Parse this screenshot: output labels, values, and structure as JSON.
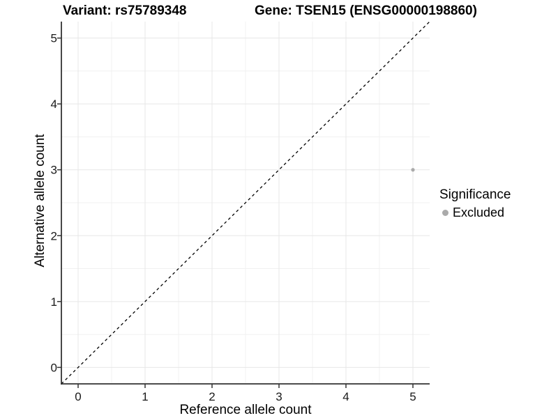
{
  "chart_data": {
    "type": "scatter",
    "title_left": "Variant: rs75789348",
    "title_right": "Gene: TSEN15 (ENSG00000198860)",
    "xlabel": "Reference allele count",
    "ylabel": "Alternative allele count",
    "xlim": [
      -0.25,
      5.25
    ],
    "ylim": [
      -0.25,
      5.25
    ],
    "x_ticks": [
      0,
      1,
      2,
      3,
      4,
      5
    ],
    "y_ticks": [
      0,
      1,
      2,
      3,
      4,
      5
    ],
    "x_minor_ticks": [
      0.5,
      1.5,
      2.5,
      3.5,
      4.5
    ],
    "y_minor_ticks": [
      0.5,
      1.5,
      2.5,
      3.5,
      4.5
    ],
    "grid": "major+minor",
    "series": [
      {
        "name": "Excluded",
        "marker": "circle",
        "marker_color": "#aaaaaa",
        "points": [
          {
            "x": 5,
            "y": 3
          }
        ]
      }
    ],
    "reference_line": {
      "kind": "identity",
      "slope": 1,
      "intercept": 0,
      "linestyle": "dashed",
      "color": "#000000"
    },
    "legend": {
      "title": "Significance",
      "position": "right",
      "items": [
        {
          "label": "Excluded",
          "color": "#aaaaaa",
          "marker": "circle"
        }
      ]
    }
  },
  "colors": {
    "background": "#ffffff",
    "axis_line": "#333333",
    "tick_label": "#1a1a1a",
    "grid_major": "#e7e7e7",
    "grid_minor": "#f1f1f1"
  }
}
